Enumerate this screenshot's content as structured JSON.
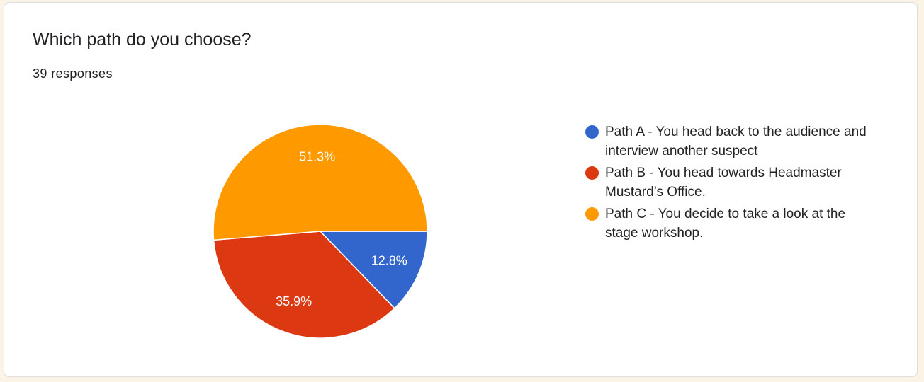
{
  "card": {
    "title": "Which path do you choose?",
    "responses": "39 responses"
  },
  "chart_data": {
    "type": "pie",
    "categories": [
      "Path A - You head back to the audience and interview another suspect",
      "Path B - You head towards Headmaster Mustard’s Office.",
      "Path C - You decide to take a look at the stage workshop."
    ],
    "values": [
      12.8,
      35.9,
      51.3
    ],
    "labels": [
      "12.8%",
      "35.9%",
      "51.3%"
    ],
    "colors": [
      "#3366cc",
      "#dc3912",
      "#ff9900"
    ],
    "legend_position": "right"
  }
}
